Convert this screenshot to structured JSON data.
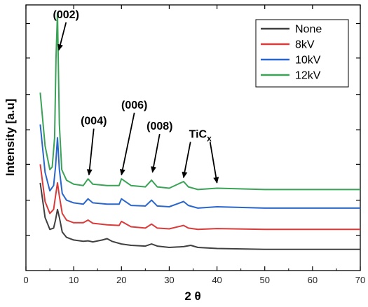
{
  "chart_data": {
    "type": "line",
    "xlabel": "2 θ",
    "ylabel": "Intensity [a.u]",
    "xlim": [
      0,
      70
    ],
    "ylim": [
      0,
      1
    ],
    "x_ticks": [
      0,
      10,
      20,
      30,
      40,
      50,
      60,
      70
    ],
    "y_ticks": [
      0.133,
      0.265,
      0.4,
      0.53,
      0.663,
      0.8,
      0.93
    ],
    "grid": false,
    "legend_position": "top-right",
    "series": [
      {
        "name": "None",
        "color": "#404040",
        "x": [
          3.0,
          4.0,
          5.0,
          5.8,
          6.2,
          6.6,
          7.0,
          7.6,
          8.5,
          10,
          12,
          13,
          14,
          16,
          17,
          18,
          20,
          22,
          25,
          26.3,
          27.5,
          30,
          33,
          34.5,
          36,
          40,
          50,
          60,
          70
        ],
        "y": [
          0.33,
          0.2,
          0.155,
          0.16,
          0.19,
          0.23,
          0.2,
          0.145,
          0.125,
          0.115,
          0.11,
          0.112,
          0.108,
          0.115,
          0.12,
          0.11,
          0.1,
          0.095,
          0.092,
          0.1,
          0.092,
          0.087,
          0.09,
          0.095,
          0.087,
          0.083,
          0.08,
          0.08,
          0.08
        ]
      },
      {
        "name": "8kV",
        "color": "#d93b3b",
        "x": [
          3.0,
          4.0,
          5.0,
          5.8,
          6.2,
          6.6,
          7.0,
          7.6,
          8.5,
          10,
          12,
          13,
          14,
          17,
          19.5,
          20,
          22,
          25,
          26.3,
          27.5,
          30,
          33,
          34,
          36,
          40,
          50,
          60,
          70
        ],
        "y": [
          0.4,
          0.26,
          0.215,
          0.23,
          0.28,
          0.33,
          0.28,
          0.215,
          0.19,
          0.18,
          0.18,
          0.19,
          0.178,
          0.172,
          0.17,
          0.185,
          0.165,
          0.16,
          0.175,
          0.16,
          0.157,
          0.17,
          0.16,
          0.155,
          0.158,
          0.155,
          0.155,
          0.155
        ]
      },
      {
        "name": "10kV",
        "color": "#2a66c9",
        "x": [
          3.0,
          4.0,
          5.0,
          5.8,
          6.2,
          6.6,
          7.0,
          7.6,
          8.5,
          10,
          12,
          13,
          14,
          17,
          19.5,
          20,
          22,
          25,
          26.3,
          27.5,
          30,
          33,
          34,
          36,
          40,
          50,
          60,
          70
        ],
        "y": [
          0.55,
          0.37,
          0.3,
          0.32,
          0.39,
          0.5,
          0.38,
          0.29,
          0.265,
          0.255,
          0.25,
          0.27,
          0.255,
          0.25,
          0.25,
          0.27,
          0.245,
          0.243,
          0.265,
          0.243,
          0.24,
          0.26,
          0.245,
          0.235,
          0.24,
          0.235,
          0.235,
          0.235
        ]
      },
      {
        "name": "12kV",
        "color": "#3aa357",
        "x": [
          3.0,
          4.0,
          5.0,
          5.5,
          6.0,
          6.3,
          6.6,
          7.0,
          7.5,
          8.5,
          10,
          12,
          13,
          14,
          17,
          19.5,
          20,
          22,
          25,
          26.3,
          27.5,
          30,
          33,
          34,
          36,
          40,
          50,
          60,
          70
        ],
        "y": [
          0.67,
          0.47,
          0.38,
          0.39,
          0.5,
          0.8,
          0.97,
          0.55,
          0.38,
          0.34,
          0.325,
          0.32,
          0.345,
          0.325,
          0.32,
          0.32,
          0.345,
          0.32,
          0.315,
          0.34,
          0.315,
          0.31,
          0.335,
          0.315,
          0.305,
          0.31,
          0.305,
          0.305,
          0.305
        ]
      }
    ],
    "annotations": [
      {
        "label": "(002)",
        "tip_x": 6.9,
        "tip_y": 0.83,
        "text_x": 8.4,
        "text_y": 0.95
      },
      {
        "label": "(004)",
        "tip_x": 13.2,
        "tip_y": 0.36,
        "text_x": 14.2,
        "text_y": 0.55
      },
      {
        "label": "(006)",
        "tip_x": 20.0,
        "tip_y": 0.36,
        "text_x": 22.7,
        "text_y": 0.61
      },
      {
        "label": "(008)",
        "tip_x": 26.5,
        "tip_y": 0.37,
        "text_x": 28.0,
        "text_y": 0.53
      },
      {
        "label": "TiC",
        "label_sub": "x",
        "tips": [
          [
            33.0,
            0.35
          ],
          [
            40.0,
            0.33
          ]
        ],
        "text_x": 36.5,
        "text_y": 0.5
      }
    ]
  }
}
